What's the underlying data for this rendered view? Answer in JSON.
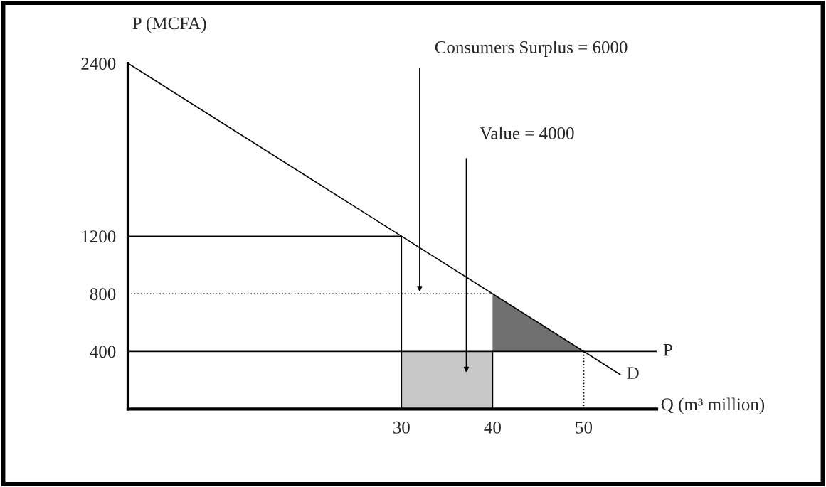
{
  "chart_data": {
    "type": "line",
    "xlabel": "Q (m³ million)",
    "ylabel": "P (MCFA)",
    "xlim": [
      0,
      58
    ],
    "ylim": [
      0,
      2400
    ],
    "xticks": [
      30,
      40,
      50
    ],
    "yticks": [
      400,
      800,
      1200,
      2400
    ],
    "grid": false,
    "legend": false,
    "series": [
      {
        "name": "D",
        "color": "#000000",
        "x": [
          0,
          54
        ],
        "values": [
          2400,
          240
        ]
      },
      {
        "color": "#000000",
        "x": [
          0,
          30,
          30
        ],
        "values": [
          1200,
          1200,
          0
        ]
      },
      {
        "color": "#000000",
        "x": [
          0,
          40
        ],
        "values": [
          800,
          800
        ],
        "line_style": "dotted"
      },
      {
        "color": "#000000",
        "x": [
          50,
          50
        ],
        "values": [
          400,
          0
        ],
        "line_style": "dotted"
      },
      {
        "color": "#000000",
        "x": [
          40,
          40
        ],
        "values": [
          400,
          0
        ]
      },
      {
        "type": "area",
        "color": "#c8c8c8",
        "x": [
          30,
          30,
          40,
          40
        ],
        "values": [
          0,
          400,
          400,
          0
        ]
      },
      {
        "type": "area",
        "color": "#707070",
        "x": [
          40,
          40,
          50
        ],
        "values": [
          400,
          800,
          400
        ]
      }
    ],
    "ref_lines": [
      {
        "axis": "y",
        "value": 400,
        "label": "P",
        "color": "#000000"
      }
    ],
    "annotations": [
      {
        "text": "Consumers Surplus = 6000",
        "x": 32,
        "y": 800
      },
      "Value = 4000"
    ]
  }
}
